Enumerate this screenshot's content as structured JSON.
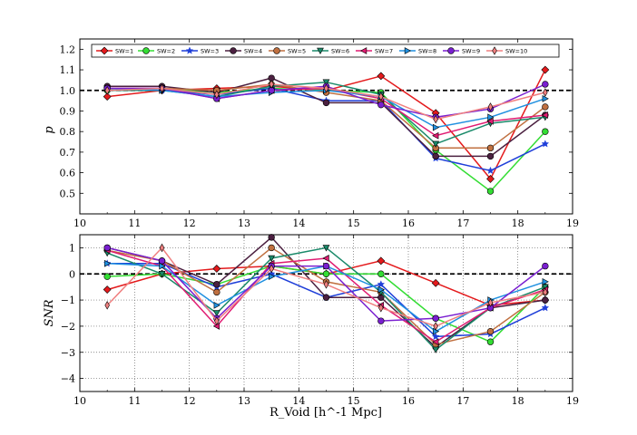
{
  "chart_data": [
    {
      "type": "line",
      "panel": "top",
      "title": "",
      "xlabel": "",
      "ylabel": "p",
      "xlim": [
        10,
        19
      ],
      "ylim": [
        0.4,
        1.25
      ],
      "xticks": [
        "10",
        "11",
        "12",
        "13",
        "14",
        "15",
        "16",
        "17",
        "18",
        "19"
      ],
      "yticks": [
        "0.5",
        "0.6",
        "0.7",
        "0.8",
        "0.9",
        "1.0",
        "1.1",
        "1.2"
      ],
      "reference_line": 1.0,
      "legend_position": "top",
      "x": [
        10.5,
        11.5,
        12.5,
        13.5,
        14.5,
        15.5,
        16.5,
        17.5,
        18.5
      ],
      "series": [
        {
          "name": "SW=1",
          "color": "#e41a1c",
          "marker": "diamond",
          "values": [
            0.97,
            1.0,
            1.01,
            1.02,
            1.0,
            1.07,
            0.89,
            0.57,
            1.1
          ]
        },
        {
          "name": "SW=2",
          "color": "#33dd33",
          "marker": "circle",
          "values": [
            1.0,
            1.01,
            0.99,
            1.01,
            1.0,
            0.99,
            0.71,
            0.51,
            0.8
          ]
        },
        {
          "name": "SW=3",
          "color": "#1f3fd9",
          "marker": "star",
          "values": [
            1.01,
            1.0,
            0.98,
            1.01,
            0.95,
            0.95,
            0.67,
            0.61,
            0.74
          ]
        },
        {
          "name": "SW=4",
          "color": "#4b2040",
          "marker": "circle",
          "values": [
            1.02,
            1.02,
            0.99,
            1.06,
            0.94,
            0.94,
            0.68,
            0.68,
            0.88
          ]
        },
        {
          "name": "SW=5",
          "color": "#c07040",
          "marker": "circle",
          "values": [
            1.01,
            1.01,
            1.0,
            1.03,
            0.99,
            0.95,
            0.72,
            0.72,
            0.92
          ]
        },
        {
          "name": "SW=6",
          "color": "#1a8a6a",
          "marker": "triangle-down",
          "values": [
            1.0,
            1.0,
            0.97,
            1.02,
            1.04,
            0.98,
            0.74,
            0.84,
            0.87
          ]
        },
        {
          "name": "SW=7",
          "color": "#e01c72",
          "marker": "triangle-left",
          "values": [
            1.01,
            1.01,
            0.96,
            1.0,
            1.01,
            0.96,
            0.78,
            0.85,
            0.88
          ]
        },
        {
          "name": "SW=8",
          "color": "#2090e0",
          "marker": "triangle-right",
          "values": [
            1.01,
            1.0,
            0.97,
            0.99,
            1.0,
            0.97,
            0.82,
            0.87,
            0.96
          ]
        },
        {
          "name": "SW=9",
          "color": "#7a1fd0",
          "marker": "circle",
          "values": [
            1.01,
            1.01,
            0.96,
            1.0,
            1.02,
            0.93,
            0.87,
            0.91,
            1.03
          ]
        },
        {
          "name": "SW=10",
          "color": "#f08080",
          "marker": "thin-diamond",
          "values": [
            1.0,
            1.01,
            0.98,
            1.03,
            1.01,
            0.97,
            0.86,
            0.92,
            0.99
          ]
        }
      ]
    },
    {
      "type": "line",
      "panel": "bottom",
      "title": "",
      "xlabel": "R_Void [h^-1 Mpc]",
      "ylabel": "SNR",
      "xlim": [
        10,
        19
      ],
      "ylim": [
        -4.5,
        1.5
      ],
      "xticks": [
        "10",
        "11",
        "12",
        "13",
        "14",
        "15",
        "16",
        "17",
        "18",
        "19"
      ],
      "yticks": [
        "−4",
        "−3",
        "−2",
        "−1",
        "0",
        "1"
      ],
      "reference_line": 0,
      "grid": true,
      "x": [
        10.5,
        11.5,
        12.5,
        13.5,
        14.5,
        15.5,
        16.5,
        17.5,
        18.5
      ],
      "series": [
        {
          "name": "SW=1",
          "values": [
            -0.6,
            0.0,
            0.2,
            0.3,
            0.0,
            0.5,
            -0.35,
            -1.2,
            -1.0
          ]
        },
        {
          "name": "SW=2",
          "values": [
            -0.1,
            0.0,
            -0.4,
            0.3,
            0.0,
            0.0,
            -1.7,
            -2.6,
            -0.5
          ]
        },
        {
          "name": "SW=3",
          "values": [
            0.4,
            0.4,
            -0.5,
            0.0,
            -0.9,
            -0.4,
            -2.4,
            -2.3,
            -1.3
          ]
        },
        {
          "name": "SW=4",
          "values": [
            1.0,
            0.5,
            -0.4,
            1.4,
            -0.9,
            -0.9,
            -2.8,
            -1.3,
            -1.0
          ]
        },
        {
          "name": "SW=5",
          "values": [
            0.9,
            0.5,
            -0.7,
            1.0,
            -0.3,
            -0.7,
            -2.7,
            -2.2,
            -0.7
          ]
        },
        {
          "name": "SW=6",
          "values": [
            0.8,
            0.0,
            -1.5,
            0.6,
            1.0,
            -0.7,
            -2.9,
            -1.3,
            -0.5
          ]
        },
        {
          "name": "SW=7",
          "values": [
            0.9,
            0.3,
            -2.0,
            0.4,
            0.6,
            -1.2,
            -2.6,
            -1.3,
            -0.6
          ]
        },
        {
          "name": "SW=8",
          "values": [
            0.4,
            0.3,
            -1.2,
            -0.1,
            0.3,
            -0.6,
            -2.2,
            -1.0,
            -0.3
          ]
        },
        {
          "name": "SW=9",
          "values": [
            1.0,
            0.5,
            -1.7,
            0.3,
            0.3,
            -1.8,
            -1.7,
            -1.3,
            0.3
          ]
        },
        {
          "name": "SW=10",
          "values": [
            -1.2,
            1.0,
            -1.8,
            0.2,
            -0.4,
            -1.3,
            -2.0,
            -1.1,
            -0.7
          ]
        }
      ]
    }
  ]
}
